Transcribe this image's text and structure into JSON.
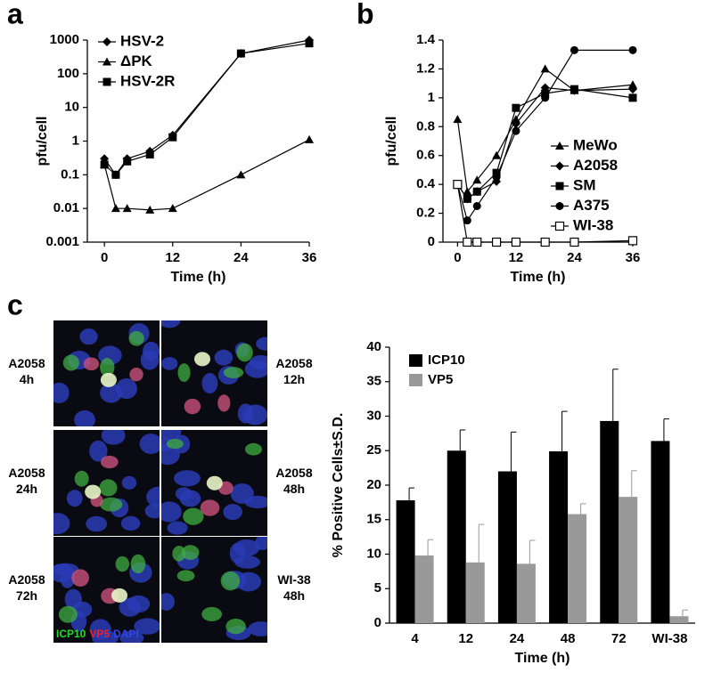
{
  "chart_data": [
    {
      "type": "line",
      "panel": "a",
      "xlabel": "Time (h)",
      "ylabel": "pfu/cell",
      "log_y": true,
      "x": [
        0,
        2,
        4,
        8,
        12,
        24,
        36
      ],
      "xlim": [
        -3,
        36
      ],
      "xticks": [
        0,
        12,
        24,
        36
      ],
      "ylim": [
        0.001,
        1000
      ],
      "yticks": [
        0.001,
        0.01,
        0.1,
        1,
        10,
        100,
        1000
      ],
      "legend": "upper left",
      "series": [
        {
          "name": "HSV-2",
          "color": "#000000",
          "marker": "diamond",
          "values": [
            0.3,
            0.1,
            0.3,
            0.5,
            1.5,
            400,
            1000
          ]
        },
        {
          "name": "ΔPK",
          "color": "#000000",
          "marker": "triangle",
          "values": [
            0.2,
            0.01,
            0.01,
            0.009,
            0.01,
            0.1,
            1.1
          ]
        },
        {
          "name": "HSV-2R",
          "color": "#000000",
          "marker": "square",
          "values": [
            0.2,
            0.1,
            0.25,
            0.4,
            1.3,
            400,
            800
          ]
        }
      ]
    },
    {
      "type": "line",
      "panel": "b",
      "xlabel": "Time (h)",
      "ylabel": "pfu/cell",
      "log_y": false,
      "x": [
        0,
        2,
        4,
        8,
        12,
        18,
        24,
        36
      ],
      "xlim": [
        -3,
        36
      ],
      "xticks": [
        0,
        12,
        24,
        36
      ],
      "ylim": [
        0,
        1.4
      ],
      "yticks": [
        0,
        0.2,
        0.4,
        0.6,
        0.8,
        1,
        1.2,
        1.4
      ],
      "legend": "lower right",
      "series": [
        {
          "name": "MeWo",
          "color": "#000000",
          "marker": "triangle",
          "values": [
            0.85,
            0.35,
            0.43,
            0.6,
            0.85,
            1.2,
            1.05,
            1.09
          ]
        },
        {
          "name": "A2058",
          "color": "#000000",
          "marker": "diamond",
          "values": [
            0.4,
            0.3,
            0.35,
            0.42,
            0.82,
            1.07,
            1.05,
            1.06
          ]
        },
        {
          "name": "SM",
          "color": "#000000",
          "marker": "square",
          "values": [
            0.4,
            0.3,
            0.35,
            0.48,
            0.93,
            1.03,
            1.06,
            1.0
          ]
        },
        {
          "name": "A375",
          "color": "#000000",
          "marker": "circle",
          "values": [
            0.4,
            0.15,
            0.25,
            0.45,
            0.77,
            1.0,
            1.33,
            1.33
          ]
        },
        {
          "name": "WI-38",
          "color": "#000000",
          "marker": "open-square",
          "values": [
            0.4,
            0,
            0,
            0,
            0,
            0,
            0,
            0.01
          ]
        }
      ]
    },
    {
      "type": "bar",
      "panel": "c",
      "xlabel": "Time (h)",
      "ylabel": "% Positive Cells±S.D.",
      "categories": [
        "4",
        "12",
        "24",
        "48",
        "72",
        "WI-38"
      ],
      "ylim": [
        0,
        40
      ],
      "yticks": [
        0,
        5,
        10,
        15,
        20,
        25,
        30,
        35,
        40
      ],
      "legend": "upper left",
      "series": [
        {
          "name": "ICP10",
          "color": "#000000",
          "values": [
            17.8,
            25,
            22,
            24.9,
            29.3,
            26.4
          ],
          "errors": [
            1.8,
            3,
            5.7,
            5.8,
            7.5,
            3.2
          ]
        },
        {
          "name": "VP5",
          "color": "#999999",
          "values": [
            9.8,
            8.8,
            8.6,
            15.8,
            18.3,
            1.0
          ],
          "errors": [
            2.3,
            5.5,
            3.4,
            1.5,
            3.8,
            0.9
          ]
        }
      ]
    }
  ],
  "micrographs": {
    "images": [
      {
        "cell": "A2058",
        "time": "4h"
      },
      {
        "cell": "A2058",
        "time": "12h"
      },
      {
        "cell": "A2058",
        "time": "24h"
      },
      {
        "cell": "A2058",
        "time": "48h"
      },
      {
        "cell": "A2058",
        "time": "72h"
      },
      {
        "cell": "WI-38",
        "time": "48h"
      }
    ],
    "stains": [
      {
        "name": "ICP10",
        "color": "#22dd22"
      },
      {
        "name": "VP5",
        "color": "#ee2222"
      },
      {
        "name": "DAPI",
        "color": "#3344ee"
      }
    ]
  }
}
